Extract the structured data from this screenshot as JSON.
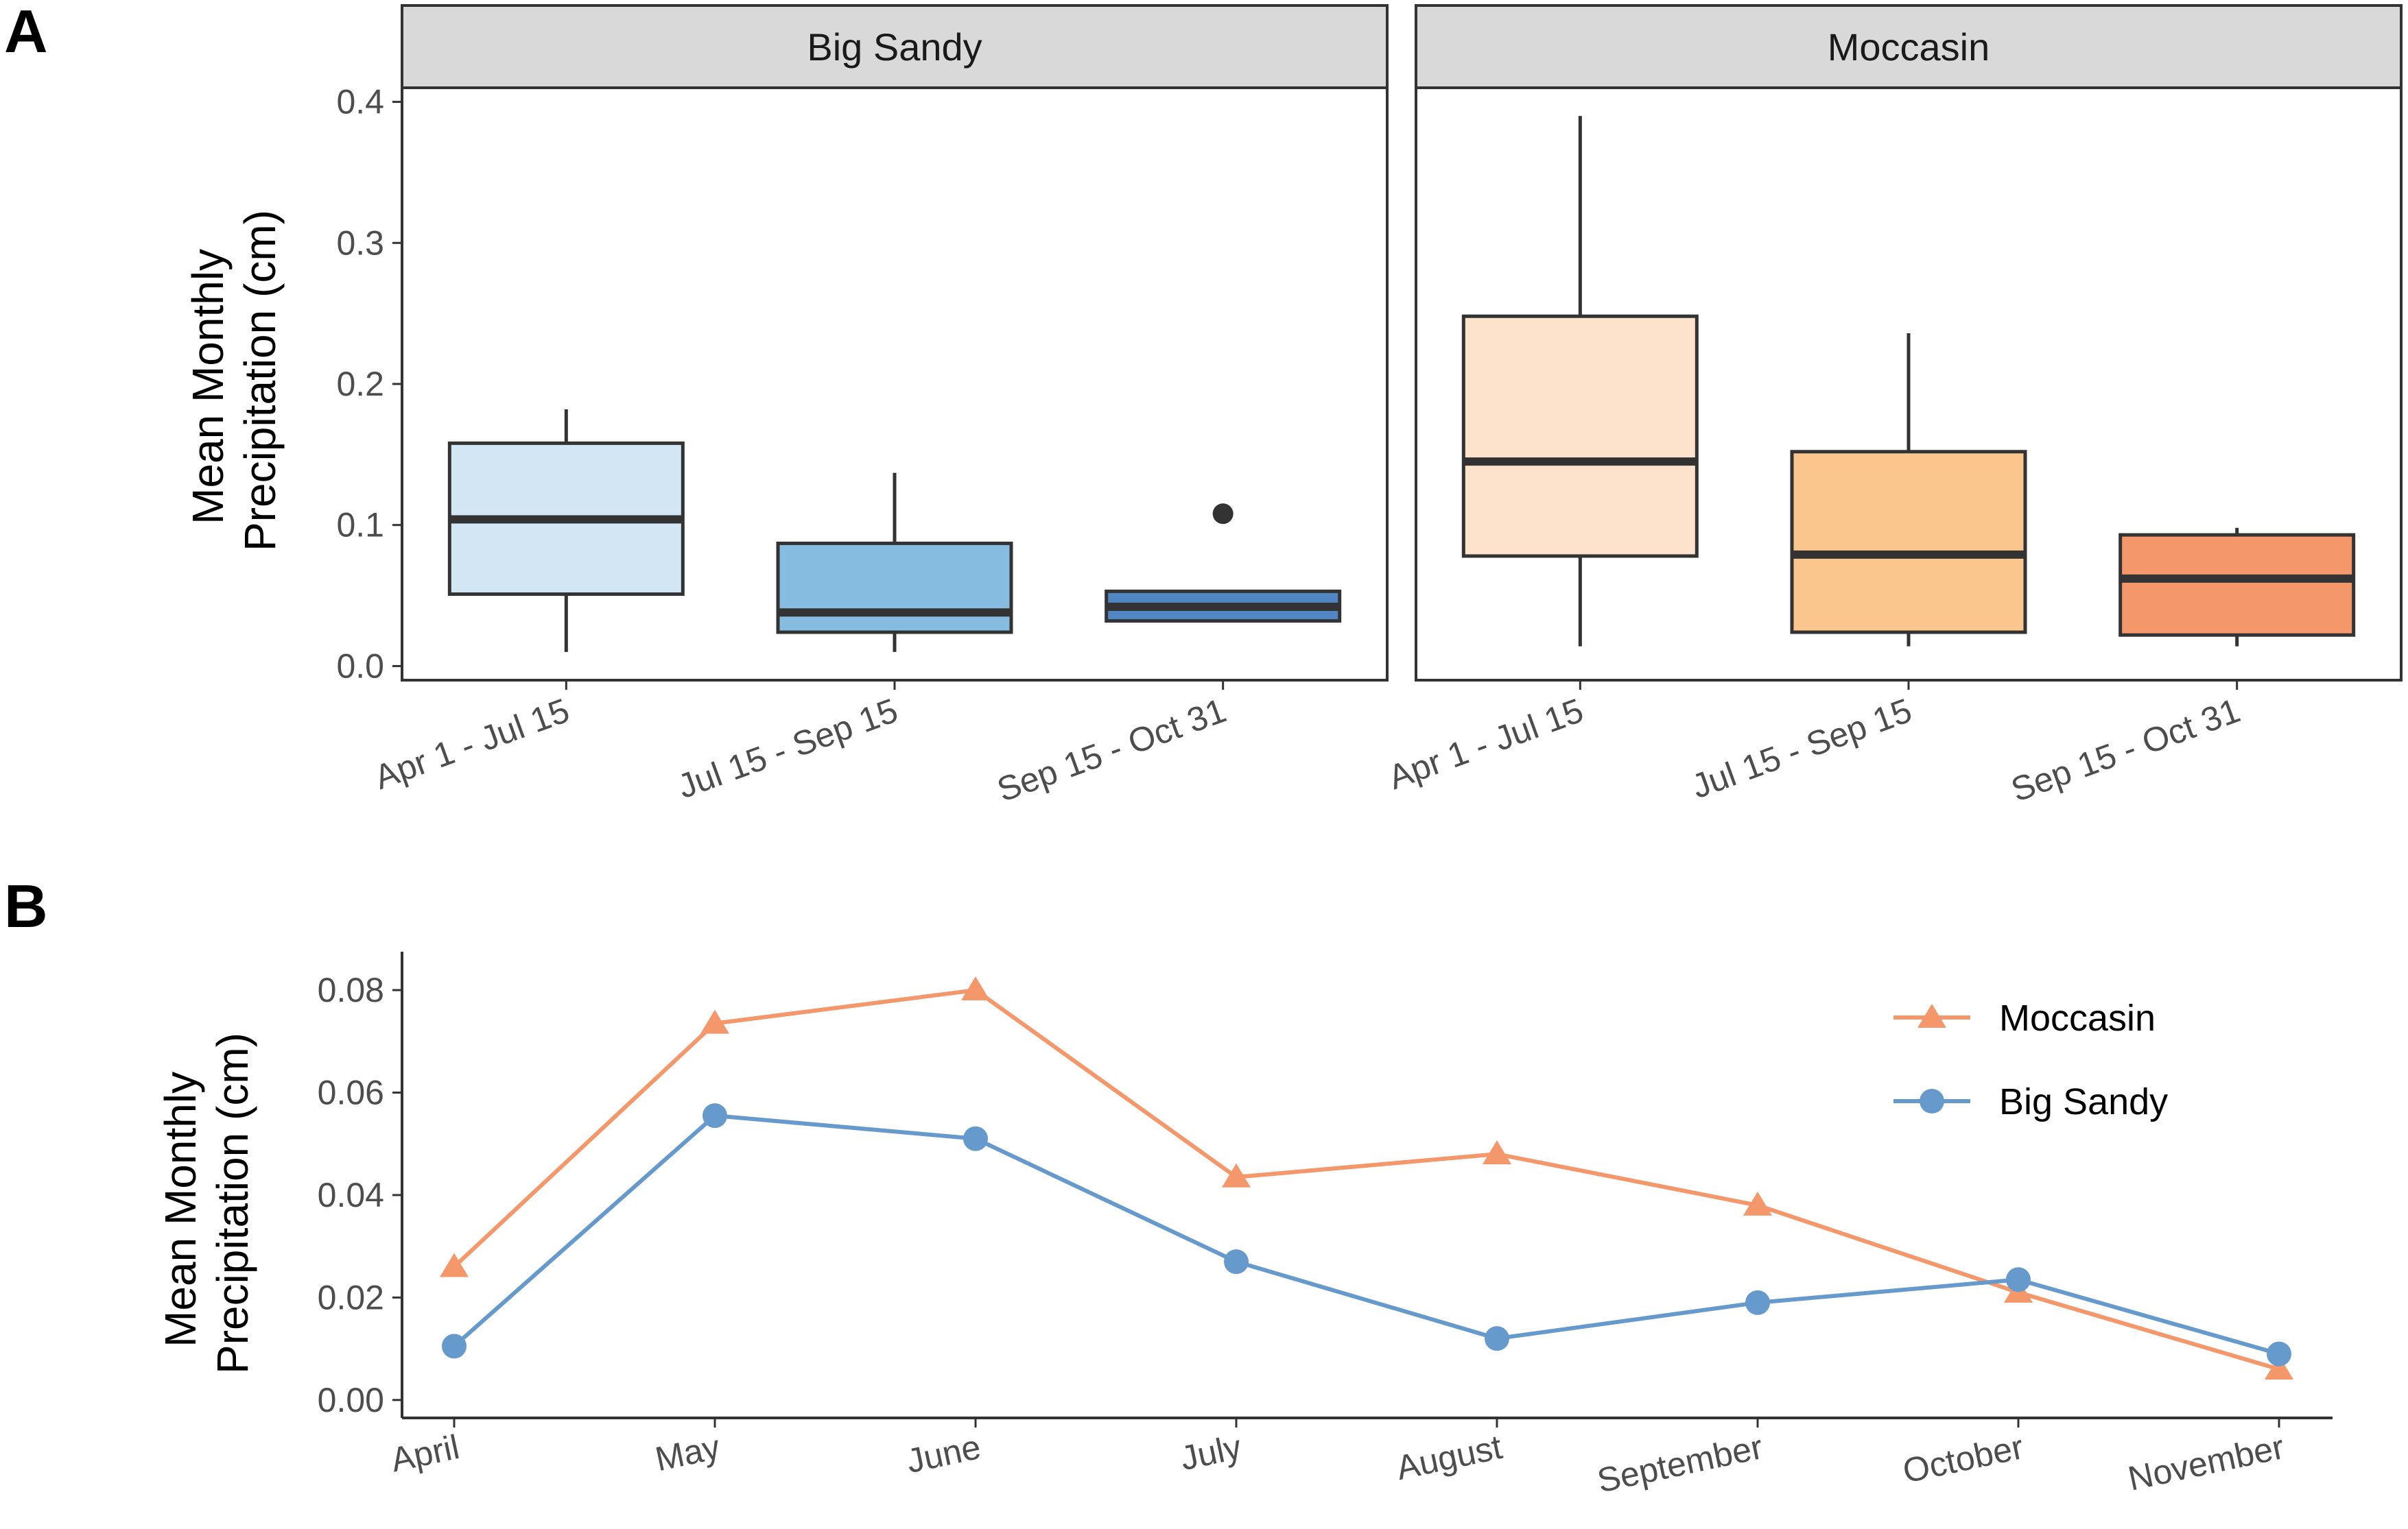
{
  "panel_labels": {
    "a": "A",
    "b": "B"
  },
  "chart_data": [
    {
      "type": "box",
      "panel": "A",
      "ylabel_line1": "Mean Monthly",
      "ylabel_line2": "Precipitation (cm)",
      "ylim": [
        -0.01,
        0.41
      ],
      "yticks": [
        0.0,
        0.1,
        0.2,
        0.3,
        0.4
      ],
      "ytick_labels": [
        "0.0",
        "0.1",
        "0.2",
        "0.3",
        "0.4"
      ],
      "categories": [
        "Apr 1 - Jul 15",
        "Jul 15 - Sep 15",
        "Sep 15 - Oct 31"
      ],
      "grid": false,
      "facets": [
        {
          "name": "Big Sandy",
          "boxes": [
            {
              "category": "Apr 1 - Jul 15",
              "min": 0.01,
              "q1": 0.051,
              "median": 0.104,
              "q3": 0.158,
              "max": 0.182,
              "outliers": [],
              "fill": "#d2e6f4"
            },
            {
              "category": "Jul 15 - Sep 15",
              "min": 0.01,
              "q1": 0.024,
              "median": 0.038,
              "q3": 0.087,
              "max": 0.137,
              "outliers": [],
              "fill": "#85bce0"
            },
            {
              "category": "Sep 15 - Oct 31",
              "min": 0.032,
              "q1": 0.032,
              "median": 0.042,
              "q3": 0.053,
              "max": 0.053,
              "outliers": [
                0.108
              ],
              "fill": "#4f86c3"
            }
          ]
        },
        {
          "name": "Moccasin",
          "boxes": [
            {
              "category": "Apr 1 - Jul 15",
              "min": 0.014,
              "q1": 0.078,
              "median": 0.145,
              "q3": 0.248,
              "max": 0.39,
              "outliers": [],
              "fill": "#fde3cb"
            },
            {
              "category": "Jul 15 - Sep 15",
              "min": 0.014,
              "q1": 0.024,
              "median": 0.079,
              "q3": 0.152,
              "max": 0.236,
              "outliers": [],
              "fill": "#fbc58e"
            },
            {
              "category": "Sep 15 - Oct 31",
              "min": 0.014,
              "q1": 0.022,
              "median": 0.062,
              "q3": 0.093,
              "max": 0.098,
              "outliers": [],
              "fill": "#f4976a"
            }
          ]
        }
      ]
    },
    {
      "type": "line",
      "panel": "B",
      "ylabel_line1": "Mean Monthly",
      "ylabel_line2": "Precipitation (cm)",
      "categories": [
        "April",
        "May",
        "June",
        "July",
        "August",
        "September",
        "October",
        "November"
      ],
      "ylim": [
        -0.0035,
        0.0875
      ],
      "yticks": [
        0.0,
        0.02,
        0.04,
        0.06,
        0.08
      ],
      "ytick_labels": [
        "0.00",
        "0.02",
        "0.04",
        "0.06",
        "0.08"
      ],
      "grid": false,
      "legend_position": "top-right",
      "series": [
        {
          "name": "Moccasin",
          "marker": "triangle",
          "color": "#f4976a",
          "values": [
            0.026,
            0.0735,
            0.08,
            0.0435,
            0.048,
            0.038,
            0.021,
            0.006
          ]
        },
        {
          "name": "Big Sandy",
          "marker": "circle",
          "color": "#6699cc",
          "values": [
            0.0105,
            0.0555,
            0.051,
            0.027,
            0.012,
            0.019,
            0.0235,
            0.009
          ]
        }
      ]
    }
  ]
}
